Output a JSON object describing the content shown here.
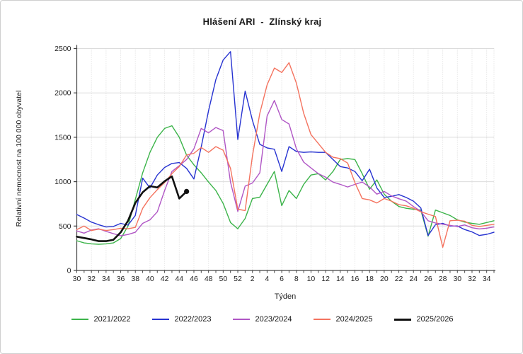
{
  "frame": {
    "background": "#ffffff",
    "border_color": "#cfcfcf"
  },
  "chart_data": {
    "type": "line",
    "title": "Hlášení ARI  -  Zlínský kraj",
    "xlabel": "Týden",
    "ylabel": "Relativní nemocnost na 100 000 obyvatel",
    "x_categories": [
      "30",
      "31",
      "32",
      "33",
      "34",
      "35",
      "36",
      "37",
      "38",
      "39",
      "40",
      "41",
      "42",
      "43",
      "44",
      "45",
      "46",
      "47",
      "48",
      "49",
      "50",
      "51",
      "52",
      "1",
      "2",
      "3",
      "4",
      "5",
      "6",
      "7",
      "8",
      "9",
      "10",
      "11",
      "12",
      "13",
      "14",
      "15",
      "16",
      "17",
      "18",
      "19",
      "20",
      "21",
      "22",
      "23",
      "24",
      "25",
      "26",
      "27",
      "28",
      "29",
      "30",
      "31",
      "32",
      "33",
      "34",
      "35"
    ],
    "x_label_every": 2,
    "ylim": [
      0,
      2500
    ],
    "ytick_step": 500,
    "grid": {
      "horizontal": "solid",
      "vertical": "dotted",
      "h_color": "#dcdcdc",
      "v_color": "#dadada"
    },
    "axis_color": "#444444",
    "legend_position": "bottom",
    "series": [
      {
        "name": "2021/2022",
        "color": "#3cb44a",
        "line_width": 1.4,
        "end_marker": false,
        "values": [
          335,
          310,
          300,
          295,
          300,
          310,
          360,
          500,
          800,
          1100,
          1330,
          1500,
          1600,
          1630,
          1500,
          1300,
          1190,
          1100,
          995,
          900,
          755,
          540,
          470,
          585,
          810,
          825,
          970,
          1115,
          730,
          900,
          810,
          970,
          1075,
          1090,
          1020,
          1115,
          1250,
          1260,
          1250,
          1090,
          915,
          1020,
          860,
          780,
          720,
          700,
          690,
          680,
          385,
          680,
          650,
          620,
          570,
          545,
          530,
          520,
          540,
          560
        ]
      },
      {
        "name": "2022/2023",
        "color": "#2733d1",
        "line_width": 1.4,
        "end_marker": false,
        "values": [
          630,
          590,
          545,
          515,
          490,
          495,
          530,
          510,
          620,
          1040,
          930,
          1075,
          1160,
          1205,
          1215,
          1150,
          1030,
          1390,
          1800,
          2150,
          2370,
          2465,
          1475,
          2020,
          1690,
          1420,
          1380,
          1365,
          1115,
          1395,
          1340,
          1330,
          1335,
          1330,
          1330,
          1250,
          1170,
          1155,
          1115,
          1010,
          1140,
          930,
          822,
          835,
          855,
          822,
          781,
          705,
          394,
          515,
          530,
          501,
          501,
          461,
          434,
          394,
          407,
          430
        ]
      },
      {
        "name": "2023/2024",
        "color": "#b056c5",
        "line_width": 1.4,
        "end_marker": false,
        "values": [
          445,
          420,
          455,
          470,
          440,
          415,
          390,
          405,
          430,
          530,
          570,
          660,
          900,
          1115,
          1180,
          1250,
          1370,
          1600,
          1550,
          1610,
          1575,
          995,
          665,
          950,
          985,
          1100,
          1740,
          1915,
          1700,
          1650,
          1370,
          1220,
          1155,
          1090,
          1050,
          995,
          970,
          940,
          970,
          995,
          940,
          860,
          890,
          840,
          808,
          781,
          720,
          666,
          560,
          534,
          521,
          508,
          495,
          513,
          481,
          468,
          476,
          490
        ]
      },
      {
        "name": "2024/2025",
        "color": "#f4735f",
        "line_width": 1.4,
        "end_marker": false,
        "values": [
          460,
          500,
          450,
          465,
          450,
          460,
          475,
          470,
          485,
          700,
          820,
          910,
          990,
          1090,
          1170,
          1300,
          1320,
          1385,
          1330,
          1395,
          1355,
          1150,
          690,
          675,
          1290,
          1770,
          2090,
          2280,
          2230,
          2340,
          2110,
          1770,
          1530,
          1430,
          1330,
          1275,
          1260,
          1210,
          990,
          810,
          795,
          760,
          810,
          781,
          741,
          728,
          701,
          661,
          634,
          608,
          261,
          560,
          565,
          555,
          508,
          495,
          508,
          520
        ]
      },
      {
        "name": "2025/2026",
        "color": "#111111",
        "line_width": 2.6,
        "end_marker": true,
        "values": [
          380,
          365,
          350,
          330,
          330,
          345,
          430,
          560,
          760,
          880,
          950,
          935,
          1005,
          1060,
          810,
          890
        ]
      }
    ]
  }
}
